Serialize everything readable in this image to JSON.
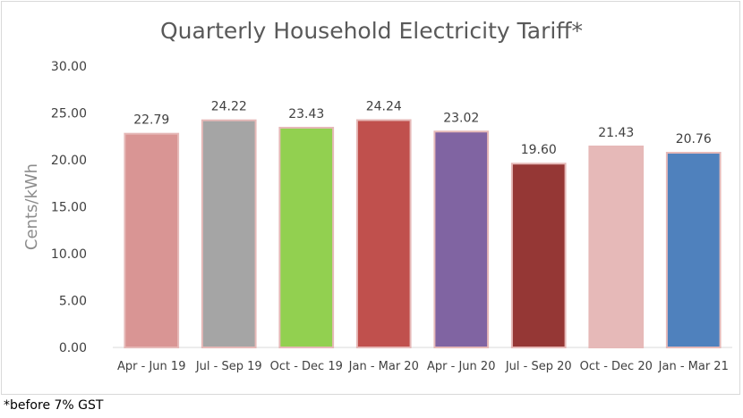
{
  "chart_data": {
    "type": "bar",
    "title": "Quarterly Household Electricity Tariff*",
    "xlabel": "",
    "ylabel": "Cents/kWh",
    "ylim": [
      0,
      30
    ],
    "yticks": [
      "0.00",
      "5.00",
      "10.00",
      "15.00",
      "20.00",
      "25.00",
      "30.00"
    ],
    "grid": false,
    "legend": "none",
    "categories": [
      "Apr - Jun 19",
      "Jul - Sep 19",
      "Oct - Dec 19",
      "Jan - Mar 20",
      "Apr - Jun 20",
      "Jul - Sep 20",
      "Oct - Dec 20",
      "Jan - Mar 21"
    ],
    "values": [
      22.79,
      24.22,
      23.43,
      24.24,
      23.02,
      19.6,
      21.43,
      20.76
    ],
    "value_labels": [
      "22.79",
      "24.22",
      "23.43",
      "24.24",
      "23.02",
      "19.60",
      "21.43",
      "20.76"
    ],
    "colors": [
      "#d99594",
      "#a5a5a5",
      "#92d050",
      "#c0504d",
      "#8064a2",
      "#953735",
      "#e6b9b8",
      "#4f81bd"
    ],
    "bar_outline": "#e6b9b8"
  },
  "footnote": "*before 7% GST"
}
